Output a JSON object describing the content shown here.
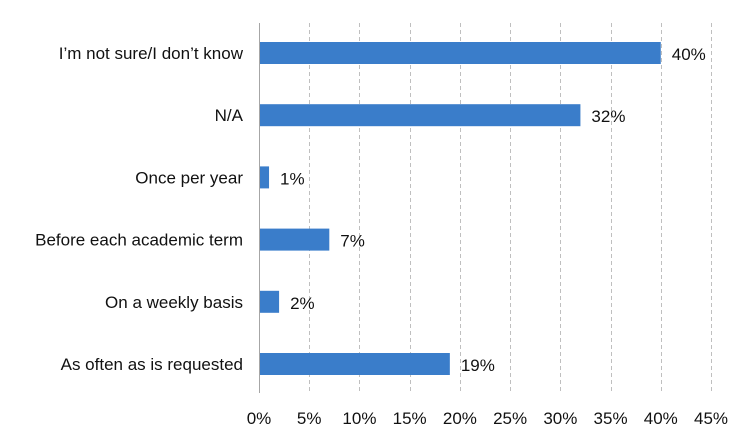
{
  "chart_data": {
    "type": "bar",
    "orientation": "horizontal",
    "categories": [
      "I’m not sure/I don’t know",
      "N/A",
      "Once per year",
      "Before each academic term",
      "On a weekly basis",
      "As often as is requested"
    ],
    "values": [
      40,
      32,
      1,
      7,
      2,
      19
    ],
    "data_labels": [
      "40%",
      "32%",
      "1%",
      "7%",
      "2%",
      "19%"
    ],
    "xlim": [
      0,
      45
    ],
    "x_ticks": [
      0,
      5,
      10,
      15,
      20,
      25,
      30,
      35,
      40,
      45
    ],
    "x_tick_labels": [
      "0%",
      "5%",
      "10%",
      "15%",
      "20%",
      "25%",
      "30%",
      "35%",
      "40%",
      "45%"
    ],
    "title": "",
    "xlabel": "",
    "ylabel": "",
    "grid": "vertical dashed",
    "legend": "none",
    "colors": {
      "bar": "#3A7DCA",
      "grid": "#BFBFBF",
      "axis": "#A6A6A6",
      "text": "#111111"
    }
  }
}
